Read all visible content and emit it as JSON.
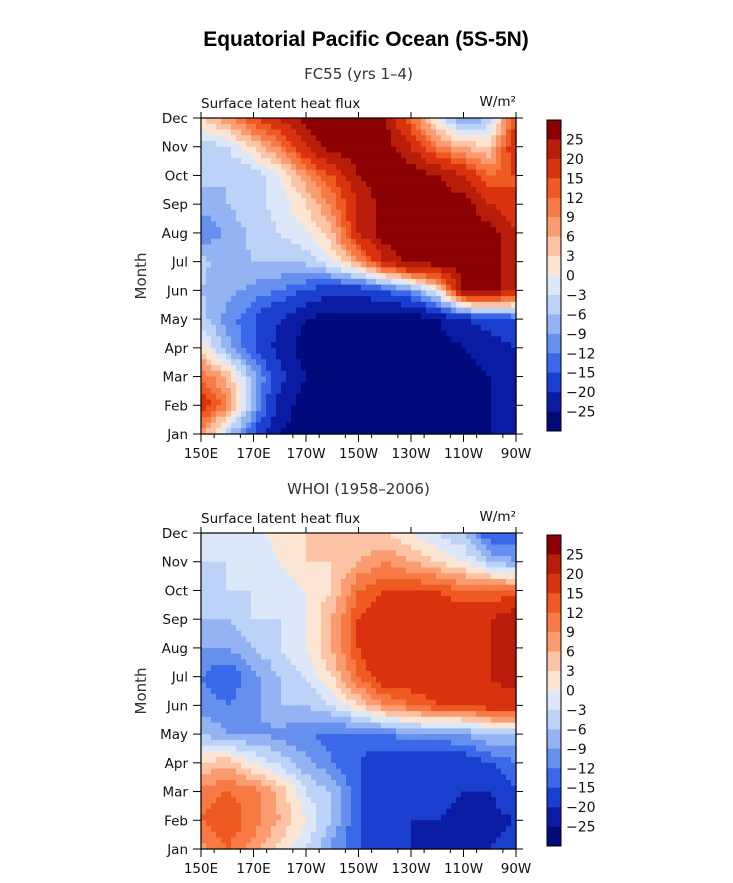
{
  "figure": {
    "title": "Equatorial Pacific Ocean (5S-5N)"
  },
  "chart_data": [
    {
      "type": "heatmap",
      "title": "FC55 (yrs 1–4)",
      "inner_title": "Surface latent heat flux",
      "units": "W/m²",
      "ylabel": "Month",
      "x_tick_labels": [
        "150E",
        "170E",
        "170W",
        "150W",
        "130W",
        "110W",
        "90W"
      ],
      "x_range_deg_east": [
        150,
        270
      ],
      "y_tick_labels": [
        "Jan",
        "Feb",
        "Mar",
        "Apr",
        "May",
        "Jun",
        "Jul",
        "Aug",
        "Sep",
        "Oct",
        "Nov",
        "Dec"
      ],
      "contour_levels": [
        -25,
        -20,
        -15,
        -12,
        -9,
        -6,
        -3,
        0,
        3,
        6,
        9,
        12,
        15,
        20,
        25
      ],
      "colorbar_labels": [
        "25",
        "20",
        "15",
        "12",
        "9",
        "6",
        "3",
        "0",
        "−3",
        "−6",
        "−9",
        "−12",
        "−15",
        "−20",
        "−25"
      ],
      "colorbar_colors": [
        "#8b0000",
        "#b81d0a",
        "#d9320e",
        "#ee5a22",
        "#f77a45",
        "#fb9c70",
        "#fcc4a4",
        "#fde5d4",
        "#dce8f9",
        "#bcd2f6",
        "#93b3f2",
        "#6690ee",
        "#3a68e8",
        "#1a3fcf",
        "#0a1ca4",
        "#000a7a"
      ],
      "x": [
        150,
        160,
        170,
        180,
        190,
        200,
        210,
        220,
        230,
        240,
        250,
        260,
        270
      ],
      "y": [
        1,
        2,
        3,
        4,
        5,
        6,
        7,
        8,
        9,
        10,
        11,
        12
      ],
      "z": [
        [
          8,
          -5,
          -15,
          -25,
          -28,
          -28,
          -28,
          -28,
          -28,
          -28,
          -28,
          -25,
          -25
        ],
        [
          18,
          10,
          -8,
          -22,
          -28,
          -28,
          -28,
          -28,
          -28,
          -28,
          -28,
          -25,
          -22
        ],
        [
          12,
          5,
          -8,
          -18,
          -25,
          -28,
          -28,
          -28,
          -28,
          -28,
          -28,
          -25,
          -20
        ],
        [
          2,
          -8,
          -15,
          -22,
          -28,
          -28,
          -28,
          -28,
          -28,
          -28,
          -25,
          -22,
          -20
        ],
        [
          -5,
          -10,
          -15,
          -20,
          -25,
          -28,
          -28,
          -28,
          -28,
          -25,
          -20,
          -18,
          -15
        ],
        [
          -6,
          -8,
          -10,
          -12,
          -15,
          -18,
          -18,
          -15,
          -10,
          0,
          25,
          28,
          20
        ],
        [
          -5,
          -8,
          -6,
          -6,
          -5,
          0,
          8,
          20,
          28,
          28,
          28,
          28,
          20
        ],
        [
          -12,
          -8,
          -5,
          -3,
          0,
          5,
          20,
          28,
          28,
          28,
          28,
          28,
          20
        ],
        [
          -8,
          -6,
          -4,
          -2,
          3,
          10,
          20,
          28,
          28,
          28,
          28,
          20,
          15
        ],
        [
          -5,
          -6,
          -5,
          0,
          8,
          15,
          25,
          28,
          28,
          25,
          20,
          12,
          15
        ],
        [
          -5,
          -3,
          3,
          10,
          20,
          28,
          28,
          28,
          20,
          10,
          5,
          3,
          20
        ],
        [
          3,
          8,
          15,
          20,
          28,
          28,
          28,
          25,
          12,
          0,
          -10,
          -5,
          15
        ]
      ]
    },
    {
      "type": "heatmap",
      "title": "WHOI (1958–2006)",
      "inner_title": "Surface latent heat flux",
      "units": "W/m²",
      "ylabel": "Month",
      "x_tick_labels": [
        "150E",
        "170E",
        "170W",
        "150W",
        "130W",
        "110W",
        "90W"
      ],
      "x_range_deg_east": [
        150,
        270
      ],
      "y_tick_labels": [
        "Jan",
        "Feb",
        "Mar",
        "Apr",
        "May",
        "Jun",
        "Jul",
        "Aug",
        "Sep",
        "Oct",
        "Nov",
        "Dec"
      ],
      "contour_levels": [
        -25,
        -20,
        -15,
        -12,
        -9,
        -6,
        -3,
        0,
        3,
        6,
        9,
        12,
        15,
        20,
        25
      ],
      "colorbar_labels": [
        "25",
        "20",
        "15",
        "12",
        "9",
        "6",
        "3",
        "0",
        "−3",
        "−6",
        "−9",
        "−12",
        "−15",
        "−20",
        "−25"
      ],
      "colorbar_colors": [
        "#8b0000",
        "#b81d0a",
        "#d9320e",
        "#ee5a22",
        "#f77a45",
        "#fb9c70",
        "#fcc4a4",
        "#fde5d4",
        "#dce8f9",
        "#bcd2f6",
        "#93b3f2",
        "#6690ee",
        "#3a68e8",
        "#1a3fcf",
        "#0a1ca4",
        "#000a7a"
      ],
      "x": [
        150,
        160,
        170,
        180,
        190,
        200,
        210,
        220,
        230,
        240,
        250,
        260,
        270
      ],
      "y": [
        1,
        2,
        3,
        4,
        5,
        6,
        7,
        8,
        9,
        10,
        11,
        12
      ],
      "z": [
        [
          8,
          12,
          8,
          2,
          -3,
          -10,
          -15,
          -20,
          -20,
          -22,
          -20,
          -20,
          -18
        ],
        [
          12,
          15,
          10,
          6,
          0,
          -6,
          -15,
          -20,
          -20,
          -20,
          -22,
          -22,
          -20
        ],
        [
          10,
          12,
          10,
          5,
          -3,
          -6,
          -15,
          -18,
          -20,
          -18,
          -20,
          -20,
          -15
        ],
        [
          3,
          5,
          0,
          -4,
          -8,
          -12,
          -15,
          -18,
          -18,
          -18,
          -18,
          -15,
          -12
        ],
        [
          -6,
          -9,
          -9,
          -10,
          -12,
          -13,
          -13,
          -12,
          -10,
          -10,
          -9,
          -6,
          -6
        ],
        [
          -10,
          -12,
          -10,
          -6,
          -6,
          -3,
          3,
          9,
          12,
          15,
          15,
          18,
          18
        ],
        [
          -12,
          -15,
          -10,
          -6,
          -3,
          3,
          12,
          18,
          18,
          18,
          18,
          20,
          22
        ],
        [
          -9,
          -9,
          -6,
          -3,
          0,
          6,
          15,
          20,
          20,
          18,
          18,
          20,
          22
        ],
        [
          -6,
          -6,
          -3,
          -3,
          0,
          6,
          15,
          18,
          18,
          18,
          18,
          20,
          24
        ],
        [
          -6,
          -3,
          -3,
          -3,
          0,
          3,
          12,
          15,
          15,
          15,
          12,
          12,
          12
        ],
        [
          -3,
          -3,
          -3,
          0,
          3,
          3,
          6,
          9,
          6,
          3,
          0,
          -6,
          -9
        ],
        [
          0,
          0,
          -3,
          3,
          3,
          3,
          3,
          3,
          0,
          -3,
          -6,
          -15,
          -15
        ]
      ]
    }
  ]
}
